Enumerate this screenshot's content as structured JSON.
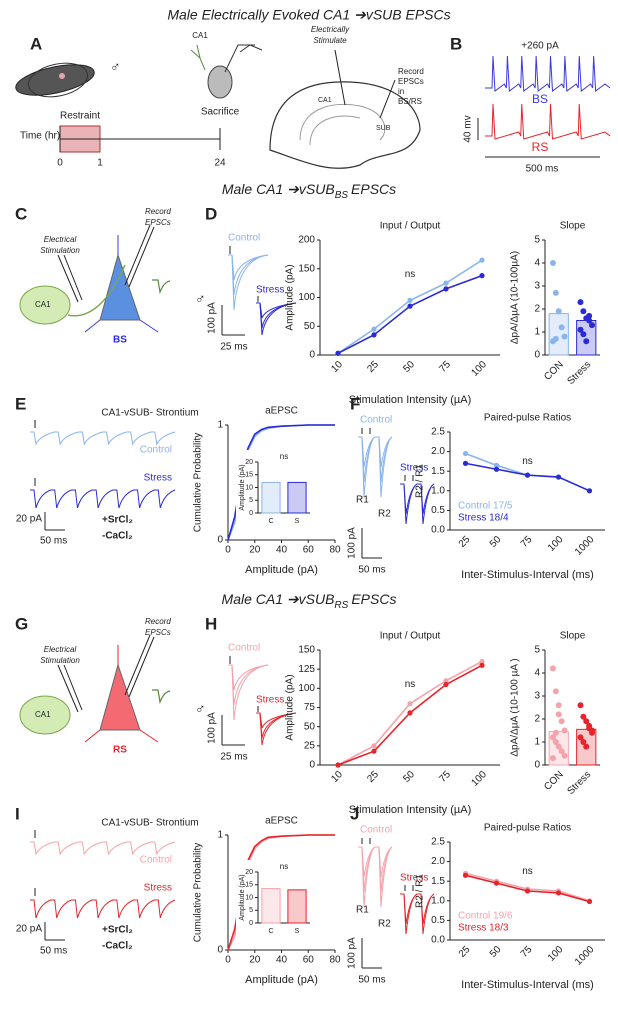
{
  "figure": {
    "header": "Male Electrically Evoked CA1 ➔vSUB EPSCs",
    "panel_letters": [
      "A",
      "B",
      "C",
      "D",
      "E",
      "F",
      "G",
      "H",
      "I",
      "J"
    ],
    "panel_a": {
      "sex": "♂",
      "time_label": "Time (hr)",
      "restraint": "Restraint",
      "timeline_ticks": [
        "0",
        "1",
        "24"
      ],
      "sacrifice": "Sacrifice",
      "ca1": "CA1",
      "stimulate_lines": [
        "Electrically",
        "Stimulate"
      ],
      "record_lines": [
        "Record",
        "EPSCs",
        "in",
        "BS/RS"
      ],
      "hippo_ca1": "CA1",
      "hippo_sub": "SUB"
    },
    "panel_b": {
      "current": "+260 pA",
      "bs": "BS",
      "rs": "RS",
      "v_scale": "40 mv",
      "t_scale": "500 ms"
    },
    "sections": [
      {
        "prefix": "Male CA1 ➔vSUB",
        "sub": "BS",
        "suffix": "EPSCs"
      },
      {
        "prefix": "Male CA1 ➔vSUB",
        "sub": "RS",
        "suffix": "EPSCs"
      }
    ],
    "schematics": [
      {
        "ca1": "CA1",
        "stim_lines": [
          "Electrical",
          "Stimulation"
        ],
        "record_lines": [
          "Record",
          "EPSCs"
        ],
        "cell": "BS",
        "sex": "♂"
      },
      {
        "ca1": "CA1",
        "stim_lines": [
          "Electrical",
          "Stimulation"
        ],
        "record_lines": [
          "Record",
          "EPSCs"
        ],
        "cell": "RS",
        "sex": "♂"
      }
    ],
    "io_scales": [
      {
        "amp": "100 pA",
        "time": "25 ms"
      },
      {
        "amp": "100 pA",
        "time": "25 ms"
      }
    ],
    "strontium": [
      {
        "title": "CA1-vSUB- Strontium",
        "sr": "+SrCl₂",
        "ca": "-CaCl₂",
        "amp": "20 pA",
        "time": "50 ms"
      },
      {
        "title": "CA1-vSUB- Strontium",
        "sr": "+SrCl₂",
        "ca": "-CaCl₂",
        "amp": "20 pA",
        "time": "50 ms"
      }
    ],
    "ppr_traces": [
      {
        "control": "Control",
        "stress": "Stress",
        "r1": "R1",
        "r2": "R2",
        "amp": "100 pA",
        "time": "50 ms"
      },
      {
        "control": "Control",
        "stress": "Stress",
        "r1": "R1",
        "r2": "R2",
        "amp": "100 pA",
        "time": "50 ms"
      }
    ]
  },
  "chart_data": [
    {
      "type": "line",
      "title": "Input / Output",
      "categories": [
        "10",
        "25",
        "50",
        "75",
        "100"
      ],
      "series": [
        {
          "name": "Control",
          "color": "#8ab4ee",
          "values": [
            3,
            45,
            95,
            125,
            165
          ]
        },
        {
          "name": "Stress",
          "color": "#2b2bd6",
          "values": [
            3,
            35,
            85,
            115,
            138
          ]
        }
      ],
      "ylim": [
        0,
        200
      ],
      "yticks": [
        0,
        50,
        100,
        150,
        200
      ],
      "xlabel": "Stimulation Intensity (µA)",
      "ylabel": "Amplitude (pA)",
      "annotation": "ns"
    },
    {
      "type": "bar",
      "title": "Slope",
      "categories": [
        "CON",
        "Stress"
      ],
      "values": [
        1.8,
        1.5
      ],
      "colors": [
        "#8ab4ee",
        "#2b2bd6"
      ],
      "points": [
        [
          4.0,
          2.7,
          1.9,
          1.2,
          0.8,
          0.6,
          0.7
        ],
        [
          2.3,
          1.9,
          1.6,
          1.5,
          1.3,
          1.1,
          0.9,
          0.6,
          1.7
        ]
      ],
      "ylim": [
        0,
        5
      ],
      "yticks": [
        0,
        1,
        2,
        3,
        4,
        5
      ],
      "ylabel": "ΔpA/ΔµA (10-100µA)"
    },
    {
      "type": "line",
      "title": "aEPSC",
      "x": [
        0,
        5,
        10,
        15,
        20,
        25,
        30,
        40,
        60,
        80
      ],
      "series": [
        {
          "name": "Control",
          "color": "#8ab4ee",
          "values": [
            0,
            0.15,
            0.5,
            0.78,
            0.9,
            0.95,
            0.97,
            0.99,
            1,
            1
          ]
        },
        {
          "name": "Stress",
          "color": "#2b2bd6",
          "values": [
            0,
            0.2,
            0.55,
            0.8,
            0.92,
            0.96,
            0.98,
            0.99,
            1,
            1
          ]
        }
      ],
      "xlim": [
        0,
        80
      ],
      "xticks": [
        0,
        20,
        40,
        60,
        80
      ],
      "ylim": [
        0,
        1
      ],
      "yticks": [
        0,
        1
      ],
      "xlabel": "Amplitude (pA)",
      "ylabel": "Cumulative Probability"
    },
    {
      "type": "bar",
      "categories": [
        "C",
        "S"
      ],
      "values": [
        12,
        12
      ],
      "colors": [
        "#8ab4ee",
        "#2b2bd6"
      ],
      "ylim": [
        0,
        20
      ],
      "yticks": [
        0,
        5,
        10,
        15,
        20
      ],
      "ylabel": "Amplitude (pA)",
      "annotation": "ns"
    },
    {
      "type": "line",
      "title": "Paired-pulse Ratios",
      "categories": [
        "25",
        "50",
        "75",
        "100",
        "1000"
      ],
      "series": [
        {
          "name": "Control 17/5",
          "color": "#8ab4ee",
          "values": [
            1.95,
            1.65,
            1.4,
            1.35,
            1.0
          ]
        },
        {
          "name": "Stress 18/4",
          "color": "#2b2bd6",
          "values": [
            1.7,
            1.55,
            1.4,
            1.35,
            1.0
          ]
        }
      ],
      "ylim": [
        0,
        2.5
      ],
      "yticks": [
        {
          "value": 0,
          "label": "0.0"
        },
        0.5,
        {
          "value": 1,
          "label": "1.0"
        },
        1.5,
        {
          "value": 2,
          "label": "2.0"
        },
        2.5
      ],
      "xlabel": "Inter-Stimulus-Interval (ms)",
      "ylabel": "R2 / R1",
      "annotation": "ns",
      "legend": "lower left"
    },
    {
      "type": "line",
      "title": "Input / Output",
      "categories": [
        "10",
        "25",
        "50",
        "75",
        "100"
      ],
      "series": [
        {
          "name": "Control",
          "color": "#f5a3ab",
          "values": [
            0,
            25,
            80,
            110,
            135
          ]
        },
        {
          "name": "Stress",
          "color": "#e5242b",
          "values": [
            0,
            18,
            68,
            105,
            130
          ]
        }
      ],
      "ylim": [
        0,
        150
      ],
      "yticks": [
        0,
        25,
        50,
        75,
        100,
        125,
        150
      ],
      "xlabel": "Stimulation Intensity (µA)",
      "ylabel": "Amplitude (pA)",
      "annotation": "ns"
    },
    {
      "type": "bar",
      "title": "Slope",
      "categories": [
        "CON",
        "Stress"
      ],
      "values": [
        1.45,
        1.55
      ],
      "colors": [
        "#f5a3ab",
        "#e5242b"
      ],
      "points": [
        [
          4.2,
          3.2,
          2.6,
          1.9,
          1.5,
          1.2,
          1.0,
          0.8,
          0.6,
          0.4,
          0.3,
          1.4,
          2.2
        ],
        [
          2.6,
          2.1,
          1.9,
          1.7,
          1.4,
          1.2,
          1.0,
          0.8,
          1.6,
          1.5
        ]
      ],
      "ylim": [
        0,
        5
      ],
      "yticks": [
        0,
        1,
        2,
        3,
        4,
        5
      ],
      "ylabel": "ΔpA/ΔµA (10-100 µA )"
    },
    {
      "type": "line",
      "title": "aEPSC",
      "x": [
        0,
        5,
        10,
        15,
        20,
        25,
        30,
        40,
        60,
        80
      ],
      "series": [
        {
          "name": "Control",
          "color": "#f5a3ab",
          "values": [
            0,
            0.12,
            0.45,
            0.75,
            0.88,
            0.94,
            0.97,
            0.99,
            1,
            1
          ]
        },
        {
          "name": "Stress",
          "color": "#e5242b",
          "values": [
            0,
            0.18,
            0.52,
            0.78,
            0.9,
            0.95,
            0.98,
            0.99,
            1,
            1
          ]
        }
      ],
      "xlim": [
        0,
        80
      ],
      "xticks": [
        0,
        20,
        40,
        60,
        80
      ],
      "ylim": [
        0,
        1
      ],
      "yticks": [
        0,
        1
      ],
      "xlabel": "Amplitude (pA)",
      "ylabel": "Cumulative Probability"
    },
    {
      "type": "bar",
      "categories": [
        "C",
        "S"
      ],
      "values": [
        13.5,
        13
      ],
      "colors": [
        "#f5a3ab",
        "#e5242b"
      ],
      "ylim": [
        0,
        20
      ],
      "yticks": [
        0,
        5,
        10,
        15,
        20
      ],
      "ylabel": "Amplitude (pA)",
      "annotation": "ns"
    },
    {
      "type": "line",
      "title": "Paired-pulse Ratios",
      "categories": [
        "25",
        "50",
        "75",
        "100",
        "1000"
      ],
      "series": [
        {
          "name": "Control 19/6",
          "color": "#f5a3ab",
          "values": [
            1.7,
            1.5,
            1.3,
            1.25,
            1.0
          ]
        },
        {
          "name": "Stress 18/3",
          "color": "#e5242b",
          "values": [
            1.65,
            1.45,
            1.25,
            1.2,
            0.98
          ]
        }
      ],
      "ylim": [
        0,
        2.5
      ],
      "yticks": [
        {
          "value": 0,
          "label": "0.0"
        },
        0.5,
        {
          "value": 1,
          "label": "1.0"
        },
        1.5,
        {
          "value": 2,
          "label": "2.0"
        },
        2.5
      ],
      "xlabel": "Inter-Stimulus-Interval (ms)",
      "ylabel": "R2 / R1",
      "annotation": "ns",
      "legend": "lower left"
    }
  ]
}
